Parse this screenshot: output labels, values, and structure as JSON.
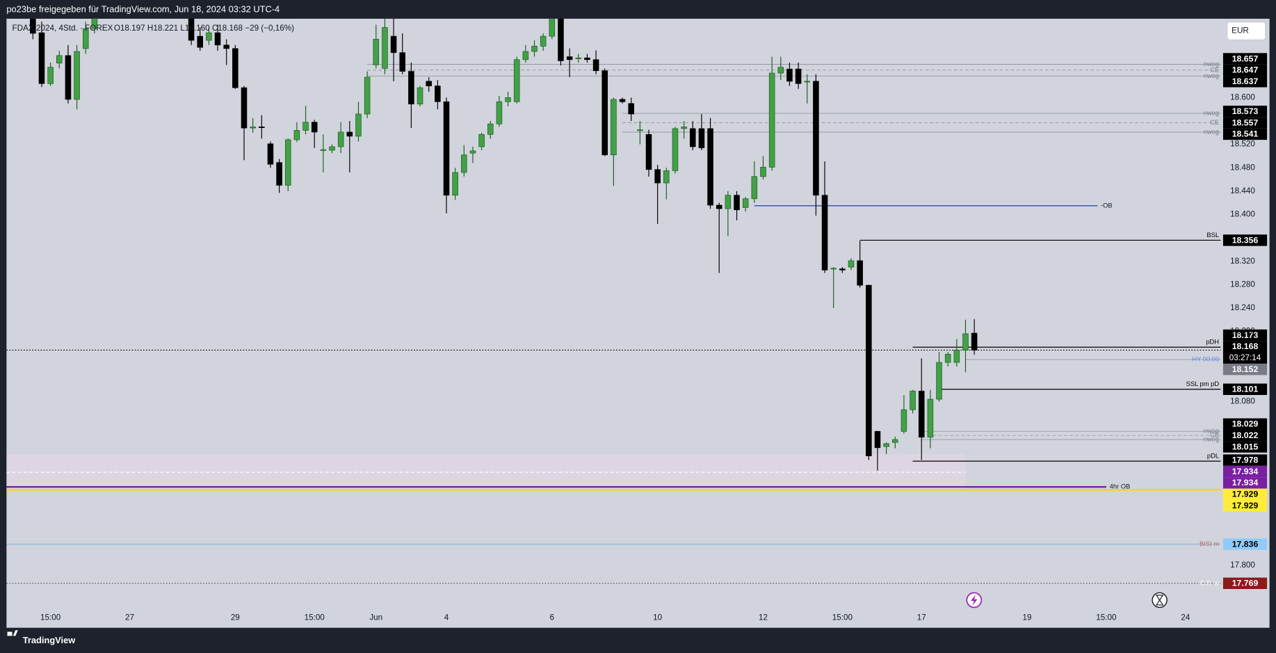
{
  "header": {
    "title": "po23be freigegeben für TradingView.com, Jun 18, 2024 03:32 UTC-4"
  },
  "chart_data": {
    "type": "candlestick",
    "symbol": "FDAX 2024, 4Std. · FOREX",
    "ohlc_text": "O18.197  H18.221  L18.160  C18.168  −29 (−0,16%)",
    "currency": "EUR",
    "up_color": "#43a047",
    "up_border": "#1b5e20",
    "down_color": "#000000",
    "ylim": [
      17.725,
      18.735
    ],
    "xlim": [
      -3,
      135
    ],
    "yticks": [
      {
        "value": 18.6,
        "label": "18.600"
      },
      {
        "value": 18.52,
        "label": "18.520"
      },
      {
        "value": 18.48,
        "label": "18.480"
      },
      {
        "value": 18.44,
        "label": "18.440"
      },
      {
        "value": 18.4,
        "label": "18.400"
      },
      {
        "value": 18.32,
        "label": "18.320"
      },
      {
        "value": 18.28,
        "label": "18.280"
      },
      {
        "value": 18.24,
        "label": "18.240"
      },
      {
        "value": 18.2,
        "label": "18.200"
      },
      {
        "value": 18.08,
        "label": "18.080"
      },
      {
        "value": 17.8,
        "label": "17.800"
      }
    ],
    "xticks": [
      {
        "value": 2,
        "label": "15:00"
      },
      {
        "value": 11,
        "label": "27"
      },
      {
        "value": 23,
        "label": "29"
      },
      {
        "value": 32,
        "label": "15:00"
      },
      {
        "value": 39,
        "label": "Jun"
      },
      {
        "value": 47,
        "label": "4"
      },
      {
        "value": 59,
        "label": "6"
      },
      {
        "value": 71,
        "label": "10"
      },
      {
        "value": 83,
        "label": "12"
      },
      {
        "value": 92,
        "label": "15:00"
      },
      {
        "value": 101,
        "label": "17"
      },
      {
        "value": 113,
        "label": "19"
      },
      {
        "value": 122,
        "label": "15:00"
      },
      {
        "value": 131,
        "label": "24"
      }
    ],
    "ohlc": [
      [
        18.75,
        18.78,
        18.7,
        18.71
      ],
      [
        18.711,
        18.73,
        18.618,
        18.624
      ],
      [
        18.624,
        18.66,
        18.62,
        18.652
      ],
      [
        18.659,
        18.68,
        18.65,
        18.672
      ],
      [
        18.672,
        18.69,
        18.59,
        18.597
      ],
      [
        18.597,
        18.69,
        18.58,
        18.679
      ],
      [
        18.684,
        18.73,
        18.675,
        18.718
      ],
      [
        18.718,
        18.75,
        18.71,
        18.74
      ],
      null,
      null,
      null,
      null,
      null,
      null,
      null,
      null,
      null,
      null,
      [
        18.74,
        18.76,
        18.69,
        18.698
      ],
      [
        18.705,
        18.72,
        18.68,
        18.686
      ],
      [
        18.698,
        18.72,
        18.69,
        18.711
      ],
      [
        18.711,
        18.725,
        18.68,
        18.69
      ],
      [
        18.69,
        18.7,
        18.656,
        18.684
      ],
      [
        18.684,
        18.69,
        18.615,
        18.617
      ],
      [
        18.617,
        18.62,
        18.493,
        18.548
      ],
      [
        18.548,
        18.565,
        18.54,
        18.55
      ],
      [
        18.55,
        18.57,
        18.53,
        18.549
      ],
      [
        18.521,
        18.525,
        18.48,
        18.486
      ],
      [
        18.489,
        18.495,
        18.437,
        18.45
      ],
      [
        18.45,
        18.53,
        18.44,
        18.528
      ],
      [
        18.528,
        18.558,
        18.524,
        18.544
      ],
      [
        18.544,
        18.586,
        18.537,
        18.558
      ],
      [
        18.558,
        18.562,
        18.514,
        18.541
      ],
      [
        18.51,
        18.537,
        18.472,
        18.511
      ],
      [
        18.51,
        18.52,
        18.505,
        18.516
      ],
      [
        18.516,
        18.558,
        18.505,
        18.541
      ],
      [
        18.541,
        18.56,
        18.472,
        18.534
      ],
      [
        18.534,
        18.593,
        18.525,
        18.572
      ],
      [
        18.572,
        18.645,
        18.565,
        18.635
      ],
      [
        18.656,
        18.725,
        18.65,
        18.7
      ],
      [
        18.65,
        18.74,
        18.64,
        18.72
      ],
      [
        18.705,
        18.735,
        18.628,
        18.677
      ],
      [
        18.677,
        18.71,
        18.64,
        18.645
      ],
      [
        18.645,
        18.66,
        18.548,
        18.589
      ],
      [
        18.589,
        18.62,
        18.585,
        18.617
      ],
      [
        18.628,
        18.635,
        18.61,
        18.62
      ],
      [
        18.62,
        18.63,
        18.58,
        18.593
      ],
      [
        18.593,
        18.6,
        18.402,
        18.433
      ],
      [
        18.433,
        18.48,
        18.425,
        18.472
      ],
      [
        18.472,
        18.519,
        18.465,
        18.502
      ],
      [
        18.505,
        18.516,
        18.488,
        18.509
      ],
      [
        18.516,
        18.54,
        18.51,
        18.537
      ],
      [
        18.537,
        18.56,
        18.53,
        18.555
      ],
      [
        18.555,
        18.603,
        18.55,
        18.593
      ],
      [
        18.593,
        18.61,
        18.585,
        18.6
      ],
      [
        18.593,
        18.67,
        18.59,
        18.665
      ],
      [
        18.665,
        18.69,
        18.66,
        18.679
      ],
      [
        18.679,
        18.698,
        18.67,
        18.688
      ],
      [
        18.688,
        18.71,
        18.68,
        18.705
      ],
      [
        18.705,
        18.75,
        18.7,
        18.74
      ],
      [
        18.74,
        18.75,
        18.655,
        18.663
      ],
      [
        18.67,
        18.684,
        18.635,
        18.665
      ],
      [
        18.667,
        18.675,
        18.66,
        18.668
      ],
      [
        18.668,
        18.675,
        18.66,
        18.665
      ],
      [
        18.665,
        18.681,
        18.64,
        18.646
      ],
      [
        18.646,
        18.65,
        18.5,
        18.502
      ],
      [
        18.502,
        18.6,
        18.449,
        18.597
      ],
      [
        18.597,
        18.6,
        18.59,
        18.593
      ],
      [
        18.59,
        18.6,
        18.56,
        18.572
      ],
      [
        18.544,
        18.56,
        18.52,
        18.545
      ],
      [
        18.537,
        18.545,
        18.465,
        18.477
      ],
      [
        18.477,
        18.485,
        18.384,
        18.454
      ],
      [
        18.454,
        18.48,
        18.426,
        18.475
      ],
      [
        18.475,
        18.55,
        18.47,
        18.547
      ],
      [
        18.547,
        18.56,
        18.53,
        18.55
      ],
      [
        18.547,
        18.56,
        18.51,
        18.516
      ],
      [
        18.547,
        18.572,
        18.51,
        18.514
      ],
      [
        18.547,
        18.565,
        18.41,
        18.416
      ],
      [
        18.416,
        18.42,
        18.3,
        18.41
      ],
      [
        18.41,
        18.44,
        18.363,
        18.433
      ],
      [
        18.433,
        18.44,
        18.39,
        18.408
      ],
      [
        18.412,
        18.43,
        18.405,
        18.427
      ],
      [
        18.427,
        18.491,
        18.42,
        18.465
      ],
      [
        18.465,
        18.5,
        18.46,
        18.481
      ],
      [
        18.481,
        18.67,
        18.475,
        18.642
      ],
      [
        18.642,
        18.67,
        18.63,
        18.652
      ],
      [
        18.649,
        18.66,
        18.62,
        18.628
      ],
      [
        18.649,
        18.66,
        18.615,
        18.624
      ],
      [
        18.628,
        18.64,
        18.59,
        18.628
      ],
      [
        18.628,
        18.64,
        18.398,
        18.433
      ],
      [
        18.433,
        18.491,
        18.3,
        18.305
      ],
      [
        18.307,
        18.31,
        18.24,
        18.308
      ],
      [
        18.307,
        18.31,
        18.3,
        18.305
      ],
      [
        18.31,
        18.325,
        18.305,
        18.321
      ],
      [
        18.321,
        18.355,
        18.275,
        18.279
      ],
      [
        18.279,
        18.28,
        17.98,
        17.987
      ],
      [
        18.029,
        18.03,
        17.962,
        18.001
      ],
      [
        18.003,
        18.01,
        17.99,
        18.008
      ],
      [
        18.01,
        18.02,
        18.0,
        18.015
      ],
      [
        18.029,
        18.091,
        18.025,
        18.066
      ],
      [
        18.066,
        18.1,
        18.06,
        18.098
      ],
      [
        18.098,
        18.154,
        17.98,
        18.019
      ],
      [
        18.019,
        18.1,
        18.0,
        18.084
      ],
      [
        18.084,
        18.165,
        18.08,
        18.147
      ],
      [
        18.147,
        18.165,
        18.14,
        18.161
      ],
      [
        18.147,
        18.187,
        18.14,
        18.168
      ],
      [
        18.168,
        18.22,
        18.13,
        18.196
      ],
      [
        18.197,
        18.221,
        18.16,
        18.168
      ]
    ],
    "zone": {
      "top": 17.99,
      "mid": 17.959,
      "bottom": 17.928,
      "to": 106,
      "color": "#ddd6e2"
    },
    "levels": [
      {
        "label": "nwog",
        "price": 18.657,
        "from": 38,
        "color": "#9598a1",
        "style": "solid",
        "width": 0.8,
        "text_color": "#787b86",
        "box_bg": "#000000",
        "box_fg": "#ffffff"
      },
      {
        "label": "CE",
        "price": 18.647,
        "from": 38,
        "color": "#9598a1",
        "style": "dashed",
        "width": 0.8,
        "text_color": "#787b86",
        "box_bg": "#000000",
        "box_fg": "#ffffff"
      },
      {
        "label": "nwog",
        "price": 18.637,
        "from": 38,
        "color": "#9598a1",
        "style": "solid",
        "width": 0.8,
        "text_color": "#787b86",
        "box_bg": "#000000",
        "box_fg": "#ffffff"
      },
      {
        "label": "nwog",
        "price": 18.573,
        "from": 67,
        "color": "#9598a1",
        "style": "solid",
        "width": 0.8,
        "text_color": "#787b86",
        "box_bg": "#000000",
        "box_fg": "#ffffff"
      },
      {
        "label": "CE",
        "price": 18.557,
        "from": 67,
        "color": "#9598a1",
        "style": "dashed",
        "width": 0.8,
        "text_color": "#787b86",
        "box_bg": "#000000",
        "box_fg": "#ffffff"
      },
      {
        "label": "nwog",
        "price": 18.541,
        "from": 67,
        "color": "#9598a1",
        "style": "solid",
        "width": 0.8,
        "text_color": "#787b86",
        "box_bg": "#000000",
        "box_fg": "#ffffff"
      },
      {
        "label": "-OB",
        "price": 18.415,
        "from": 82,
        "to": 121,
        "color": "#1e3fa8",
        "style": "solid",
        "width": 1,
        "text_color": "#131722",
        "label_pos": "after"
      },
      {
        "label": "BSL",
        "price": 18.356,
        "from": 94,
        "color": "#000000",
        "style": "solid",
        "width": 1,
        "text_color": "#000000",
        "box_bg": "#000000",
        "box_fg": "#ffffff"
      },
      {
        "label": "pDH",
        "price": 18.173,
        "from": 100,
        "color": "#000000",
        "style": "solid",
        "width": 1,
        "text_color": "#000000",
        "box_bg": "#000000",
        "box_fg": "#ffffff"
      },
      {
        "price": 18.168,
        "color": "#000000",
        "style": "dotted",
        "width": 1,
        "box_bg": "#000000",
        "box_fg": "#ffffff",
        "countdown": "03:27:14"
      },
      {
        "label": "HY 00:00",
        "price": 18.152,
        "from": 106,
        "color": "#9598a1",
        "style": "solid",
        "width": 0.8,
        "text_color": "#5b8def",
        "box_bg": "#787b86",
        "box_fg": "#ffffff"
      },
      {
        "label": "SSL pm pD",
        "price": 18.101,
        "from": 103,
        "color": "#000000",
        "style": "solid",
        "width": 1,
        "text_color": "#000000",
        "box_bg": "#000000",
        "box_fg": "#ffffff"
      },
      {
        "label": "nwog",
        "price": 18.029,
        "from": 101,
        "color": "#9598a1",
        "style": "solid",
        "width": 0.8,
        "text_color": "#787b86",
        "box_bg": "#000000",
        "box_fg": "#ffffff"
      },
      {
        "label": "CE",
        "price": 18.022,
        "from": 101,
        "color": "#9598a1",
        "style": "dashed",
        "width": 0.8,
        "text_color": "#787b86",
        "box_bg": "#000000",
        "box_fg": "#ffffff"
      },
      {
        "label": "nwog",
        "price": 18.015,
        "from": 101,
        "color": "#9598a1",
        "style": "solid",
        "width": 0.8,
        "text_color": "#787b86",
        "box_bg": "#000000",
        "box_fg": "#ffffff"
      },
      {
        "label": "pDL",
        "price": 17.978,
        "from": 100,
        "color": "#000000",
        "style": "solid",
        "width": 1,
        "text_color": "#000000",
        "box_bg": "#000000",
        "box_fg": "#ffffff"
      },
      {
        "label": "4hr OB",
        "price": 17.934,
        "to": 122,
        "color": "#7b1fa2",
        "style": "solid",
        "width": 2,
        "text_color": "#131722",
        "label_pos": "after",
        "box_bg": "#7b1fa2",
        "box_fg": "#ffffff"
      },
      {
        "price": 17.934,
        "to": 122,
        "color": "#7b1fa2",
        "style": "solid",
        "width": 2,
        "box_bg": "#7b1fa2",
        "box_fg": "#ffffff"
      },
      {
        "price": 17.929,
        "color": "#f5d90a",
        "style": "solid",
        "width": 2,
        "box_bg": "#ffeb3b",
        "box_fg": "#000000"
      },
      {
        "price": 17.929,
        "color": "#f5d90a",
        "style": "solid",
        "width": 2,
        "box_bg": "#ffeb3b",
        "box_fg": "#000000"
      },
      {
        "label": "BISI m",
        "price": 17.836,
        "color": "#90b8e0",
        "style": "solid",
        "width": 1,
        "text_color": "#c06060",
        "box_bg": "#90caf9",
        "box_fg": "#000000"
      },
      {
        "label": "C.E. w",
        "price": 17.769,
        "color": "#555555",
        "style": "dotted",
        "width": 1,
        "text_color": "#ffffff",
        "box_bg": "#8b1a1a",
        "box_fg": "#ffffff"
      }
    ]
  },
  "footer": {
    "brand": "TradingView"
  }
}
